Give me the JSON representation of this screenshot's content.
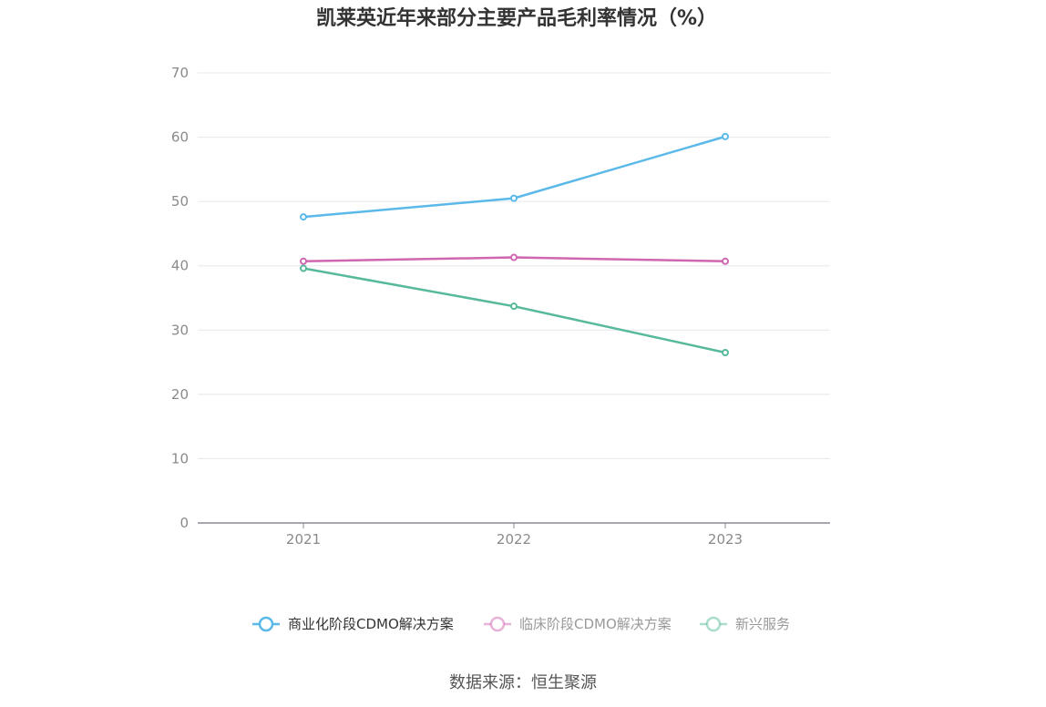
{
  "chart_data": {
    "type": "line",
    "title": "凯莱英近年来部分主要产品毛利率情况（%）",
    "categories": [
      "2021",
      "2022",
      "2023"
    ],
    "ylim": [
      0,
      70
    ],
    "yticks": [
      0,
      10,
      20,
      30,
      40,
      50,
      60,
      70
    ],
    "series": [
      {
        "name": "商业化阶段CDMO解决方案",
        "values": [
          47.6,
          50.5,
          60.1
        ],
        "color": "#5ab9e9",
        "legend_text_color": "#333333"
      },
      {
        "name": "临床阶段CDMO解决方案",
        "values": [
          40.7,
          41.3,
          40.7
        ],
        "color": "#d065b0",
        "legend_text_color": "#999999"
      },
      {
        "name": "新兴服务",
        "values": [
          39.6,
          33.7,
          26.5
        ],
        "color": "#57b99b",
        "legend_text_color": "#999999"
      }
    ],
    "source": "数据来源：恒生聚源"
  }
}
